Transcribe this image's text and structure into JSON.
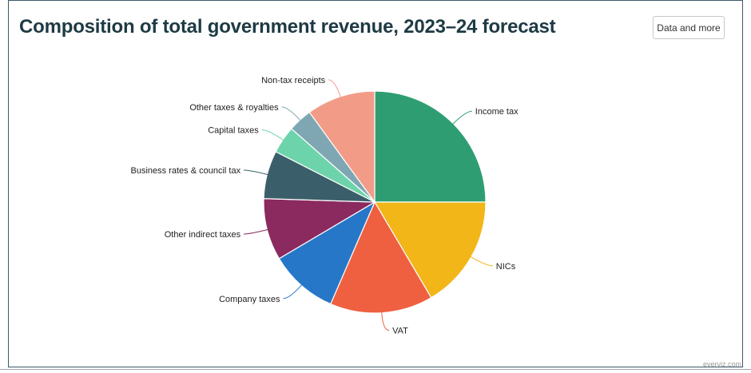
{
  "title": "Composition of total government revenue, 2023–24 forecast",
  "button_label": "Data and more",
  "credit": "everviz.com",
  "chart_data": {
    "type": "pie",
    "title": "Composition of total government revenue, 2023–24 forecast",
    "start_angle_deg": 0,
    "direction": "clockwise",
    "slices": [
      {
        "label": "Income tax",
        "value": 25,
        "color": "#2e9e72"
      },
      {
        "label": "NICs",
        "value": 16.5,
        "color": "#f2b619"
      },
      {
        "label": "VAT",
        "value": 15,
        "color": "#ef6040"
      },
      {
        "label": "Company taxes",
        "value": 10,
        "color": "#2777c8"
      },
      {
        "label": "Other indirect taxes",
        "value": 9,
        "color": "#8a2a5e"
      },
      {
        "label": "Business rates & council tax",
        "value": 7,
        "color": "#3b5f6a"
      },
      {
        "label": "Capital taxes",
        "value": 4,
        "color": "#6dd3ab"
      },
      {
        "label": "Other taxes & royalties",
        "value": 3.5,
        "color": "#7ea7b3"
      },
      {
        "label": "Non-tax receipts",
        "value": 10,
        "color": "#f29c88"
      }
    ]
  }
}
